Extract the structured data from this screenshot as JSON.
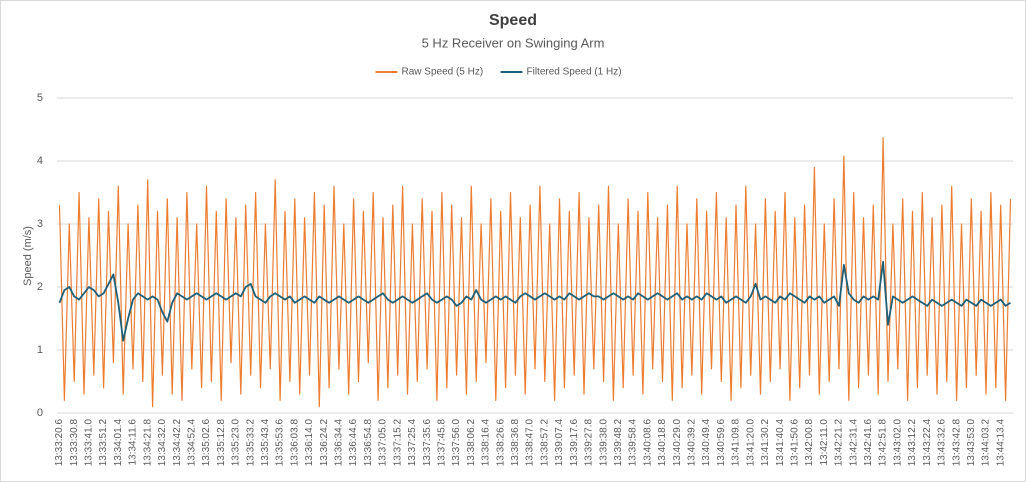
{
  "chart_data": {
    "type": "line",
    "title": "Speed",
    "subtitle": "5 Hz Receiver on Swinging Arm",
    "y_label": "Speed (m/s)",
    "ylim": [
      0,
      5
    ],
    "yticks": [
      0,
      1,
      2,
      3,
      4,
      5
    ],
    "grid": true,
    "legend": "top",
    "categories": [
      "13:33:20.6",
      null,
      null,
      "13:33:30.8",
      null,
      null,
      "13:33:41.0",
      null,
      null,
      "13:33:51.2",
      null,
      null,
      "13:34:01.4",
      null,
      null,
      "13:34:11.6",
      null,
      null,
      "13:34:21.8",
      null,
      null,
      "13:34:32.0",
      null,
      null,
      "13:34:42.2",
      null,
      null,
      "13:34:52.4",
      null,
      null,
      "13:35:02.6",
      null,
      null,
      "13:35:12.8",
      null,
      null,
      "13:35:23.0",
      null,
      null,
      "13:35:33.2",
      null,
      null,
      "13:35:43.4",
      null,
      null,
      "13:35:53.6",
      null,
      null,
      "13:36:03.8",
      null,
      null,
      "13:36:14.0",
      null,
      null,
      "13:36:24.2",
      null,
      null,
      "13:36:34.4",
      null,
      null,
      "13:36:44.6",
      null,
      null,
      "13:36:54.8",
      null,
      null,
      "13:37:05.0",
      null,
      null,
      "13:37:15.2",
      null,
      null,
      "13:37:25.4",
      null,
      null,
      "13:37:35.6",
      null,
      null,
      "13:37:45.8",
      null,
      null,
      "13:37:56.0",
      null,
      null,
      "13:38:06.2",
      null,
      null,
      "13:38:16.4",
      null,
      null,
      "13:38:26.6",
      null,
      null,
      "13:38:36.8",
      null,
      null,
      "13:38:47.0",
      null,
      null,
      "13:38:57.2",
      null,
      null,
      "13:39:07.4",
      null,
      null,
      "13:39:17.6",
      null,
      null,
      "13:39:27.8",
      null,
      null,
      "13:39:38.0",
      null,
      null,
      "13:39:48.2",
      null,
      null,
      "13:39:58.4",
      null,
      null,
      "13:40:08.6",
      null,
      null,
      "13:40:18.8",
      null,
      null,
      "13:40:29.0",
      null,
      null,
      "13:40:39.2",
      null,
      null,
      "13:40:49.4",
      null,
      null,
      "13:40:59.6",
      null,
      null,
      "13:41:09.8",
      null,
      null,
      "13:41:20.0",
      null,
      null,
      "13:41:30.2",
      null,
      null,
      "13:41:40.4",
      null,
      null,
      "13:41:50.6",
      null,
      null,
      "13:42:00.8",
      null,
      null,
      "13:42:11.0",
      null,
      null,
      "13:42:21.2",
      null,
      null,
      "13:42:31.4",
      null,
      null,
      "13:42:41.6",
      null,
      null,
      "13:42:51.8",
      null,
      null,
      "13:43:02.0",
      null,
      null,
      "13:43:12.2",
      null,
      null,
      "13:43:22.4",
      null,
      null,
      "13:43:32.6",
      null,
      null,
      "13:43:42.8",
      null,
      null,
      "13:43:53.0",
      null,
      null,
      "13:44:03.2",
      null,
      null,
      "13:44:13.4",
      null,
      null
    ],
    "series": [
      {
        "name": "Raw Speed (5 Hz)",
        "color": "#ed7d31",
        "values": [
          3.3,
          0.2,
          3.0,
          0.5,
          3.5,
          0.3,
          3.1,
          0.6,
          3.4,
          0.4,
          3.2,
          0.8,
          3.6,
          0.3,
          3.0,
          0.7,
          3.3,
          0.5,
          3.7,
          0.1,
          3.2,
          0.6,
          3.4,
          0.3,
          3.1,
          0.2,
          3.5,
          0.7,
          3.0,
          0.4,
          3.6,
          0.5,
          3.2,
          0.2,
          3.4,
          0.8,
          3.1,
          0.3,
          3.3,
          0.6,
          3.5,
          0.4,
          3.0,
          0.7,
          3.7,
          0.2,
          3.2,
          0.5,
          3.4,
          0.3,
          3.1,
          0.6,
          3.5,
          0.1,
          3.3,
          0.4,
          3.6,
          0.7,
          3.0,
          0.3,
          3.4,
          0.5,
          3.2,
          0.8,
          3.5,
          0.2,
          3.1,
          0.4,
          3.3,
          0.6,
          3.6,
          0.3,
          3.0,
          0.5,
          3.4,
          0.7,
          3.2,
          0.2,
          3.5,
          0.4,
          3.3,
          0.6,
          3.1,
          0.3,
          3.6,
          0.5,
          3.0,
          0.8,
          3.4,
          0.2,
          3.2,
          0.4,
          3.5,
          0.6,
          3.1,
          0.3,
          3.3,
          0.7,
          3.6,
          0.5,
          3.0,
          0.2,
          3.4,
          0.4,
          3.2,
          0.6,
          3.5,
          0.3,
          3.1,
          0.7,
          3.3,
          0.5,
          3.6,
          0.2,
          3.0,
          0.4,
          3.4,
          0.6,
          3.2,
          0.3,
          3.5,
          0.7,
          3.1,
          0.5,
          3.3,
          0.2,
          3.6,
          0.4,
          3.0,
          0.6,
          3.4,
          0.3,
          3.2,
          0.7,
          3.5,
          0.5,
          3.1,
          0.2,
          3.3,
          0.4,
          3.6,
          0.6,
          3.0,
          0.3,
          3.4,
          0.5,
          3.2,
          0.7,
          3.5,
          0.2,
          3.1,
          0.4,
          3.3,
          0.6,
          3.9,
          0.3,
          3.0,
          0.5,
          3.4,
          0.7,
          4.08,
          0.2,
          3.5,
          0.4,
          3.1,
          0.6,
          3.3,
          0.3,
          4.37,
          0.5,
          3.0,
          0.7,
          3.4,
          0.2,
          3.2,
          0.4,
          3.5,
          0.6,
          3.1,
          0.3,
          3.3,
          0.5,
          3.6,
          0.2,
          3.0,
          0.4,
          3.4,
          0.6,
          3.2,
          0.3,
          3.5,
          0.4,
          3.3,
          0.2,
          3.4
        ]
      },
      {
        "name": "Filtered Speed (1 Hz)",
        "color": "#1f6078",
        "values": [
          1.75,
          1.95,
          2.0,
          1.85,
          1.8,
          1.9,
          2.0,
          1.95,
          1.85,
          1.9,
          2.05,
          2.2,
          1.75,
          1.15,
          1.5,
          1.8,
          1.9,
          1.85,
          1.8,
          1.85,
          1.8,
          1.6,
          1.45,
          1.75,
          1.9,
          1.85,
          1.8,
          1.85,
          1.9,
          1.85,
          1.8,
          1.85,
          1.9,
          1.85,
          1.8,
          1.85,
          1.9,
          1.85,
          2.0,
          2.05,
          1.85,
          1.8,
          1.75,
          1.85,
          1.9,
          1.85,
          1.8,
          1.85,
          1.75,
          1.8,
          1.85,
          1.8,
          1.75,
          1.85,
          1.8,
          1.75,
          1.8,
          1.85,
          1.8,
          1.75,
          1.8,
          1.85,
          1.8,
          1.75,
          1.8,
          1.85,
          1.9,
          1.8,
          1.75,
          1.8,
          1.85,
          1.8,
          1.75,
          1.8,
          1.85,
          1.9,
          1.8,
          1.75,
          1.8,
          1.85,
          1.8,
          1.7,
          1.75,
          1.85,
          1.8,
          1.95,
          1.8,
          1.75,
          1.8,
          1.85,
          1.8,
          1.85,
          1.8,
          1.75,
          1.85,
          1.9,
          1.85,
          1.8,
          1.85,
          1.9,
          1.85,
          1.8,
          1.85,
          1.8,
          1.9,
          1.85,
          1.8,
          1.85,
          1.9,
          1.85,
          1.85,
          1.8,
          1.85,
          1.9,
          1.85,
          1.8,
          1.85,
          1.8,
          1.9,
          1.85,
          1.8,
          1.85,
          1.9,
          1.85,
          1.8,
          1.85,
          1.9,
          1.8,
          1.85,
          1.8,
          1.85,
          1.8,
          1.9,
          1.85,
          1.8,
          1.85,
          1.75,
          1.8,
          1.85,
          1.8,
          1.75,
          1.85,
          2.05,
          1.8,
          1.85,
          1.8,
          1.75,
          1.85,
          1.8,
          1.9,
          1.85,
          1.8,
          1.75,
          1.85,
          1.8,
          1.85,
          1.75,
          1.8,
          1.85,
          1.7,
          2.35,
          1.9,
          1.8,
          1.75,
          1.85,
          1.8,
          1.85,
          1.8,
          2.4,
          1.4,
          1.85,
          1.8,
          1.75,
          1.8,
          1.85,
          1.8,
          1.75,
          1.7,
          1.8,
          1.75,
          1.7,
          1.75,
          1.8,
          1.75,
          1.7,
          1.8,
          1.75,
          1.7,
          1.8,
          1.75,
          1.7,
          1.75,
          1.8,
          1.7,
          1.75
        ]
      }
    ]
  }
}
